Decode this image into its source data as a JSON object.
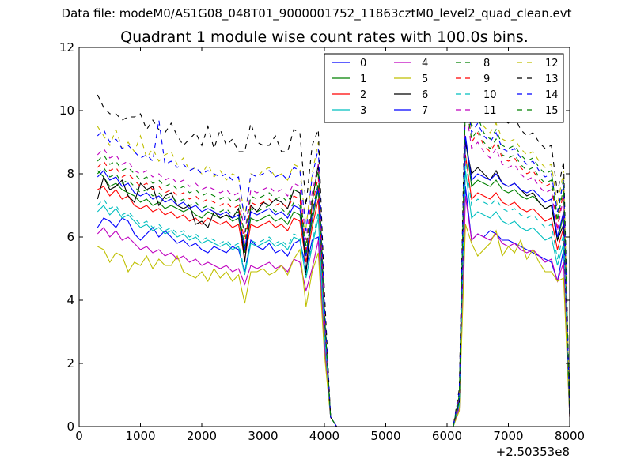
{
  "suptitle": "Data file: modeM0/AS1G08_048T01_9000001752_11863cztM0_level2_quad_clean.evt",
  "chart_data": {
    "type": "line",
    "title": "Quadrant 1 module wise count rates with 100.0s bins.",
    "xlabel": "",
    "ylabel": "",
    "x_offset_label": "+2.50353e8",
    "xlim": [
      0,
      8000
    ],
    "ylim": [
      0,
      12
    ],
    "xticks": [
      "0",
      "1000",
      "2000",
      "3000",
      "4000",
      "5000",
      "6000",
      "7000",
      "8000"
    ],
    "yticks": [
      "0",
      "2",
      "4",
      "6",
      "8",
      "10",
      "12"
    ],
    "grid": false,
    "legend_position": "top-right",
    "legend_columns": 4,
    "seg1_x_start": 300,
    "seg1_x_step": 100,
    "seg2_x": [
      6200,
      6300,
      6400,
      6500,
      6600,
      6700,
      6800,
      6900,
      7000,
      7100,
      7200,
      7300,
      7400,
      7500,
      7600,
      7700,
      7800,
      7900,
      8000
    ],
    "series": [
      {
        "name": "0",
        "color": "#0000ff",
        "dash": "solid",
        "seg1": [
          6.3,
          6.6,
          6.5,
          6.3,
          6.6,
          6.5,
          6.1,
          5.9,
          6.1,
          6.3,
          6.0,
          6.2,
          6.0,
          5.8,
          5.9,
          5.7,
          5.8,
          5.6,
          5.5,
          5.7,
          5.6,
          5.5,
          5.7,
          5.6,
          4.9,
          5.9,
          5.7,
          5.6,
          5.8,
          5.5,
          5.6,
          5.4,
          5.8,
          5.9,
          5.0,
          5.9,
          6.0,
          2.5,
          0.3
        ],
        "seg2": [
          0.6,
          7.6,
          5.9,
          6.1,
          6.0,
          6.2,
          6.1,
          5.9,
          5.9,
          5.8,
          5.7,
          5.6,
          5.5,
          5.4,
          5.3,
          5.2,
          4.6,
          5.6,
          0.3
        ]
      },
      {
        "name": "1",
        "color": "#008000",
        "dash": "solid",
        "seg1": [
          8.1,
          7.9,
          7.6,
          7.7,
          7.5,
          7.4,
          7.3,
          7.1,
          7.2,
          7.0,
          7.1,
          6.9,
          7.0,
          6.9,
          6.8,
          6.9,
          6.7,
          6.6,
          6.8,
          6.7,
          6.6,
          6.7,
          6.5,
          6.6,
          5.5,
          6.6,
          6.5,
          6.6,
          6.7,
          6.5,
          6.6,
          6.4,
          6.8,
          6.7,
          5.4,
          6.5,
          7.5,
          3.3,
          0.3
        ],
        "seg2": [
          0.9,
          9.1,
          7.6,
          7.8,
          7.7,
          7.6,
          7.8,
          7.5,
          7.4,
          7.5,
          7.3,
          7.2,
          7.3,
          7.1,
          6.9,
          7.0,
          5.9,
          6.7,
          0.4
        ]
      },
      {
        "name": "2",
        "color": "#ff0000",
        "dash": "solid",
        "seg1": [
          7.5,
          7.6,
          7.3,
          7.5,
          7.2,
          7.3,
          7.0,
          6.9,
          7.0,
          6.8,
          6.9,
          6.7,
          6.8,
          6.6,
          6.7,
          6.5,
          6.6,
          6.4,
          6.6,
          6.5,
          6.4,
          6.5,
          6.3,
          6.4,
          5.3,
          6.4,
          6.3,
          6.4,
          6.5,
          6.3,
          6.4,
          6.2,
          6.6,
          6.5,
          5.2,
          6.3,
          7.2,
          3.2,
          0.3
        ],
        "seg2": [
          0.8,
          8.6,
          7.2,
          7.4,
          7.3,
          7.2,
          7.4,
          7.1,
          7.0,
          7.1,
          6.9,
          6.8,
          6.9,
          6.7,
          6.5,
          6.6,
          5.6,
          6.3,
          0.4
        ]
      },
      {
        "name": "3",
        "color": "#00bfbf",
        "dash": "solid",
        "seg1": [
          6.8,
          7.0,
          6.7,
          6.9,
          6.6,
          6.7,
          6.5,
          6.3,
          6.4,
          6.2,
          6.3,
          6.1,
          6.2,
          6.0,
          6.1,
          5.9,
          6.0,
          5.8,
          5.9,
          5.8,
          5.7,
          5.8,
          5.6,
          5.7,
          4.8,
          5.8,
          5.7,
          5.8,
          5.9,
          5.7,
          5.8,
          5.6,
          6.0,
          5.9,
          4.7,
          5.7,
          6.6,
          2.9,
          0.3
        ],
        "seg2": [
          0.7,
          8.1,
          6.6,
          6.8,
          6.7,
          6.6,
          6.8,
          6.5,
          6.4,
          6.5,
          6.3,
          6.2,
          6.3,
          6.1,
          5.9,
          6.0,
          5.1,
          5.8,
          0.4
        ]
      },
      {
        "name": "4",
        "color": "#bf00bf",
        "dash": "solid",
        "seg1": [
          6.1,
          6.3,
          6.0,
          6.2,
          5.9,
          6.0,
          5.8,
          5.6,
          5.7,
          5.5,
          5.6,
          5.4,
          5.5,
          5.3,
          5.4,
          5.2,
          5.3,
          5.1,
          5.2,
          5.1,
          5.0,
          5.1,
          4.9,
          5.0,
          4.5,
          5.1,
          5.0,
          5.1,
          5.2,
          5.0,
          5.1,
          4.9,
          5.3,
          5.2,
          4.3,
          5.0,
          5.9,
          2.6,
          0.3
        ],
        "seg2": [
          0.6,
          7.3,
          5.9,
          6.1,
          6.0,
          5.9,
          6.1,
          5.8,
          5.7,
          5.8,
          5.6,
          5.5,
          5.6,
          5.4,
          5.2,
          5.3,
          4.6,
          5.2,
          0.3
        ]
      },
      {
        "name": "5",
        "color": "#bfbf00",
        "dash": "solid",
        "seg1": [
          5.7,
          5.6,
          5.2,
          5.5,
          5.4,
          4.9,
          5.2,
          5.1,
          5.4,
          5.0,
          5.3,
          5.1,
          5.1,
          5.4,
          4.9,
          4.8,
          4.7,
          4.9,
          4.6,
          5.0,
          4.7,
          4.9,
          4.6,
          4.8,
          3.9,
          4.9,
          4.9,
          5.0,
          4.8,
          4.9,
          5.1,
          4.8,
          5.3,
          5.6,
          3.8,
          4.9,
          5.5,
          2.3,
          0.3
        ],
        "seg2": [
          0.5,
          6.4,
          5.8,
          5.4,
          5.6,
          5.8,
          6.2,
          5.4,
          5.7,
          5.5,
          5.9,
          5.3,
          5.6,
          5.2,
          4.9,
          4.9,
          4.6,
          4.7,
          0.3
        ]
      },
      {
        "name": "6",
        "color": "#000000",
        "dash": "solid",
        "seg1": [
          7.2,
          7.9,
          7.5,
          7.6,
          7.8,
          7.3,
          7.1,
          7.7,
          7.5,
          7.6,
          7.0,
          7.3,
          7.4,
          7.0,
          6.9,
          7.0,
          6.4,
          6.5,
          6.3,
          6.8,
          6.6,
          6.7,
          6.6,
          6.9,
          5.2,
          7.0,
          6.8,
          7.1,
          7.0,
          7.2,
          7.1,
          6.9,
          7.5,
          7.4,
          4.8,
          7.1,
          8.3,
          3.6,
          0.3
        ],
        "seg2": [
          0.8,
          9.0,
          8.0,
          8.2,
          8.0,
          7.8,
          8.1,
          7.7,
          7.6,
          7.7,
          7.5,
          7.3,
          7.4,
          7.1,
          6.9,
          7.0,
          5.9,
          6.4,
          0.4
        ]
      },
      {
        "name": "7",
        "color": "#0000ff",
        "dash": "solid",
        "seg1": [
          7.9,
          8.1,
          7.8,
          7.9,
          7.6,
          7.7,
          7.4,
          7.3,
          7.4,
          7.2,
          7.3,
          7.1,
          7.2,
          7.0,
          7.1,
          6.9,
          7.0,
          6.8,
          6.9,
          6.8,
          6.7,
          6.8,
          6.6,
          6.7,
          5.6,
          6.8,
          6.7,
          6.8,
          6.9,
          6.7,
          6.8,
          6.6,
          7.0,
          6.9,
          5.4,
          6.7,
          7.6,
          3.4,
          0.3
        ],
        "seg2": [
          0.9,
          9.2,
          7.8,
          8.0,
          7.9,
          7.8,
          8.0,
          7.7,
          7.6,
          7.7,
          7.5,
          7.4,
          7.5,
          7.3,
          7.1,
          7.2,
          6.0,
          6.8,
          0.4
        ]
      },
      {
        "name": "8",
        "color": "#008000",
        "dash": "dash",
        "seg1": [
          8.0,
          8.2,
          7.9,
          8.0,
          7.7,
          7.8,
          7.6,
          7.4,
          7.5,
          7.3,
          7.4,
          7.2,
          7.3,
          7.1,
          7.2,
          7.0,
          7.1,
          6.9,
          7.0,
          6.9,
          6.8,
          6.9,
          6.7,
          6.8,
          5.7,
          6.9,
          6.8,
          6.9,
          7.0,
          6.8,
          6.9,
          6.7,
          7.1,
          7.0,
          5.5,
          6.8,
          7.7,
          3.4,
          0.3
        ],
        "seg2": [
          0.9,
          10.5,
          9.5,
          9.8,
          9.3,
          9.1,
          9.4,
          8.9,
          8.8,
          8.9,
          8.6,
          8.4,
          8.5,
          8.2,
          8.0,
          8.1,
          6.6,
          7.9,
          0.4
        ]
      },
      {
        "name": "9",
        "color": "#ff0000",
        "dash": "dash",
        "seg1": [
          8.2,
          8.4,
          8.1,
          8.2,
          7.9,
          8.0,
          7.8,
          7.6,
          7.7,
          7.5,
          7.6,
          7.4,
          7.5,
          7.3,
          7.4,
          7.2,
          7.3,
          7.1,
          7.2,
          7.1,
          7.0,
          7.1,
          6.9,
          7.0,
          5.8,
          7.1,
          7.0,
          7.1,
          7.2,
          7.0,
          7.1,
          6.9,
          7.3,
          7.2,
          5.6,
          7.0,
          7.9,
          3.5,
          0.3
        ],
        "seg2": [
          1.0,
          10.8,
          9.0,
          9.3,
          8.9,
          8.7,
          9.0,
          8.5,
          8.4,
          8.5,
          8.2,
          8.0,
          8.1,
          7.8,
          7.6,
          7.7,
          6.3,
          7.5,
          0.4
        ]
      },
      {
        "name": "10",
        "color": "#00bfbf",
        "dash": "dash",
        "seg1": [
          7.0,
          7.2,
          6.9,
          7.0,
          6.7,
          6.8,
          6.6,
          6.4,
          6.5,
          6.3,
          6.4,
          6.2,
          6.3,
          6.1,
          6.2,
          6.0,
          6.1,
          5.9,
          6.0,
          5.9,
          5.8,
          5.9,
          5.7,
          5.8,
          4.9,
          5.9,
          5.8,
          5.9,
          6.0,
          5.8,
          5.9,
          5.7,
          6.1,
          6.0,
          4.8,
          5.8,
          6.8,
          3.0,
          0.3
        ],
        "seg2": [
          0.7,
          8.5,
          7.0,
          7.2,
          7.1,
          7.0,
          7.2,
          6.9,
          6.8,
          6.9,
          6.7,
          6.6,
          6.7,
          6.5,
          6.3,
          6.4,
          5.3,
          6.1,
          0.4
        ]
      },
      {
        "name": "11",
        "color": "#bf00bf",
        "dash": "dash",
        "seg1": [
          8.6,
          8.8,
          8.5,
          8.6,
          8.3,
          8.4,
          8.1,
          8.0,
          8.1,
          7.9,
          8.0,
          7.8,
          7.9,
          7.7,
          7.8,
          7.6,
          7.7,
          7.5,
          7.6,
          7.5,
          7.4,
          7.5,
          7.3,
          7.4,
          6.1,
          7.5,
          7.4,
          7.5,
          7.6,
          7.4,
          7.5,
          7.3,
          7.7,
          7.6,
          5.9,
          7.4,
          8.3,
          3.7,
          0.3
        ],
        "seg2": [
          1.0,
          10.2,
          8.8,
          9.0,
          8.7,
          8.5,
          8.8,
          8.3,
          8.2,
          8.3,
          8.0,
          7.8,
          7.9,
          7.6,
          7.4,
          7.5,
          6.2,
          7.3,
          0.4
        ]
      },
      {
        "name": "12",
        "color": "#bfbf00",
        "dash": "dash",
        "seg1": [
          9.5,
          9.2,
          8.9,
          9.4,
          8.8,
          9.0,
          8.7,
          9.2,
          8.5,
          8.8,
          8.4,
          8.6,
          8.7,
          8.3,
          8.5,
          8.1,
          8.2,
          8.0,
          8.3,
          7.9,
          8.1,
          7.8,
          8.0,
          7.9,
          6.6,
          8.0,
          7.9,
          8.1,
          8.2,
          7.9,
          8.0,
          7.8,
          8.3,
          8.2,
          6.3,
          8.0,
          9.0,
          4.0,
          0.3
        ],
        "seg2": [
          1.1,
          10.9,
          9.6,
          9.9,
          9.5,
          9.3,
          9.6,
          9.1,
          9.0,
          9.1,
          8.8,
          8.6,
          8.7,
          8.4,
          8.2,
          8.3,
          7.0,
          8.1,
          0.4
        ]
      },
      {
        "name": "13",
        "color": "#000000",
        "dash": "dash",
        "seg1": [
          10.5,
          10.1,
          9.9,
          9.9,
          9.7,
          9.8,
          9.8,
          9.9,
          9.4,
          9.7,
          9.4,
          9.3,
          9.6,
          9.2,
          8.9,
          9.1,
          9.3,
          8.9,
          9.5,
          8.8,
          9.4,
          8.9,
          9.1,
          8.7,
          8.7,
          9.6,
          9.0,
          8.9,
          8.9,
          9.2,
          8.7,
          8.7,
          9.4,
          9.3,
          7.0,
          8.9,
          9.4,
          4.3,
          0.3
        ],
        "seg2": [
          1.2,
          11.2,
          10.2,
          10.6,
          10.1,
          9.9,
          10.2,
          9.7,
          9.6,
          9.8,
          9.4,
          9.2,
          9.3,
          9.0,
          8.8,
          8.9,
          7.4,
          8.4,
          0.5
        ]
      },
      {
        "name": "14",
        "color": "#0000ff",
        "dash": "dash",
        "seg1": [
          9.2,
          9.4,
          9.0,
          9.1,
          8.8,
          8.9,
          8.7,
          8.5,
          8.6,
          8.4,
          9.7,
          8.3,
          8.4,
          8.2,
          8.3,
          8.1,
          8.2,
          8.0,
          8.1,
          8.0,
          7.9,
          8.0,
          7.8,
          7.9,
          6.5,
          8.0,
          7.9,
          8.0,
          8.1,
          7.9,
          8.0,
          7.8,
          8.2,
          8.1,
          6.2,
          7.9,
          8.8,
          3.9,
          0.3
        ],
        "seg2": [
          1.1,
          10.7,
          9.3,
          9.6,
          9.2,
          9.0,
          9.3,
          8.8,
          8.7,
          8.8,
          8.5,
          8.3,
          8.4,
          8.1,
          7.9,
          8.0,
          6.8,
          7.8,
          0.4
        ]
      },
      {
        "name": "15",
        "color": "#008000",
        "dash": "dash",
        "seg1": [
          8.4,
          8.6,
          8.3,
          8.4,
          8.1,
          8.2,
          8.0,
          7.8,
          7.9,
          7.7,
          7.8,
          7.6,
          7.7,
          7.5,
          7.6,
          7.4,
          7.5,
          7.3,
          7.4,
          7.3,
          7.2,
          7.3,
          7.1,
          7.2,
          6.0,
          7.3,
          7.2,
          7.3,
          7.4,
          7.2,
          7.3,
          7.1,
          7.5,
          7.4,
          5.7,
          7.2,
          8.1,
          3.6,
          0.3
        ],
        "seg2": [
          1.0,
          10.3,
          9.1,
          9.4,
          9.0,
          8.8,
          9.1,
          8.6,
          8.5,
          8.6,
          8.3,
          8.1,
          8.2,
          7.9,
          7.7,
          7.8,
          6.5,
          7.6,
          0.4
        ]
      }
    ]
  }
}
